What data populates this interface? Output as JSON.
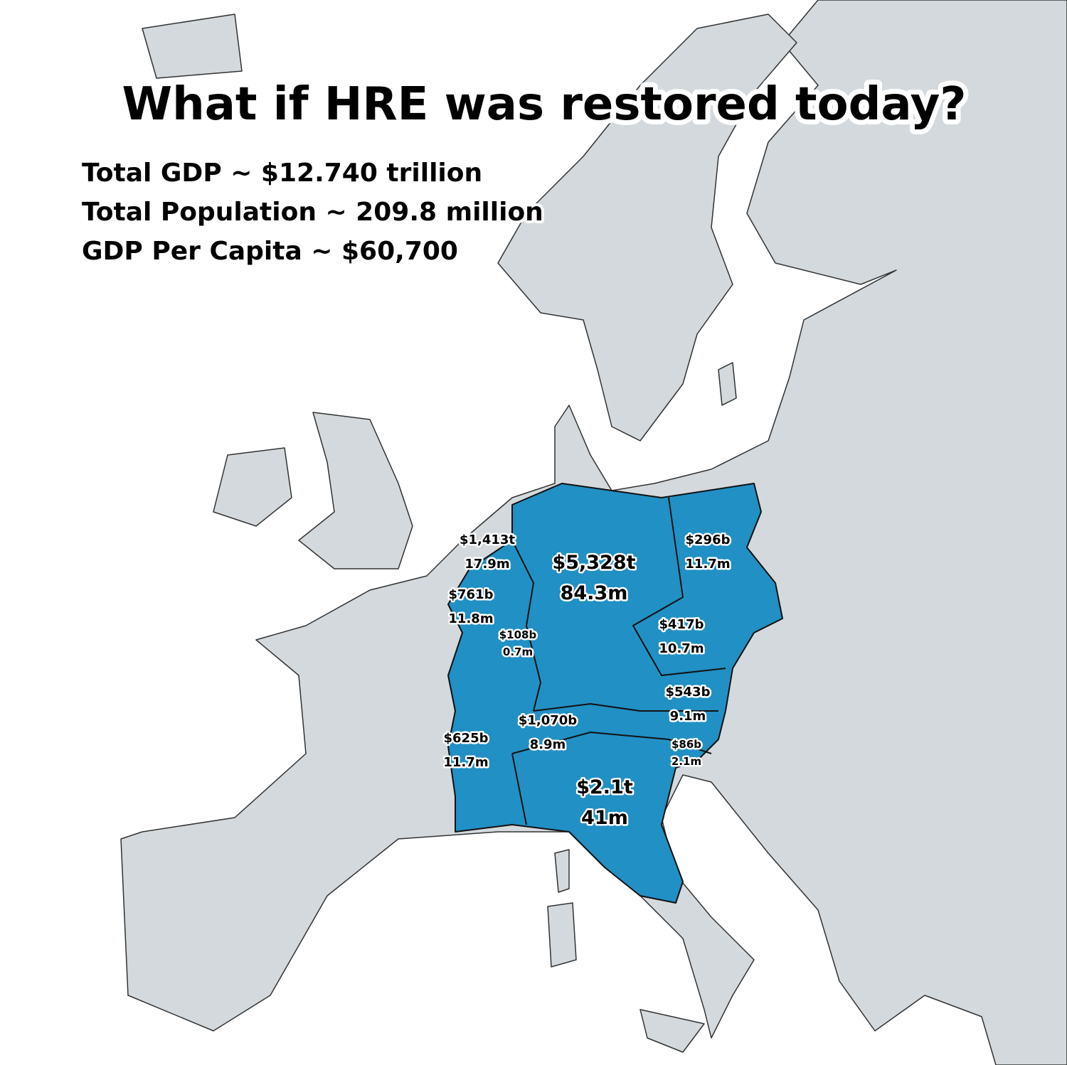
{
  "header": {
    "title": "What if HRE was restored today?",
    "stats": [
      "Total GDP ~ $12.740 trillion",
      "Total Population ~ 209.8 million",
      "GDP Per Capita ~ $60,700"
    ]
  },
  "regions": [
    {
      "gdp": "$1,413t",
      "population": "17.9m"
    },
    {
      "gdp": "$5,328t",
      "population": "84.3m"
    },
    {
      "gdp": "$296b",
      "population": "11.7m"
    },
    {
      "gdp": "$761b",
      "population": "11.8m"
    },
    {
      "gdp": "$108b",
      "population": "0.7m"
    },
    {
      "gdp": "$417b",
      "population": "10.7m"
    },
    {
      "gdp": "$543b",
      "population": "9.1m"
    },
    {
      "gdp": "$1,070b",
      "population": "8.9m"
    },
    {
      "gdp": "$625b",
      "population": "11.7m"
    },
    {
      "gdp": "$86b",
      "population": "2.1m"
    },
    {
      "gdp": "$2.1t",
      "population": "41m"
    }
  ]
}
